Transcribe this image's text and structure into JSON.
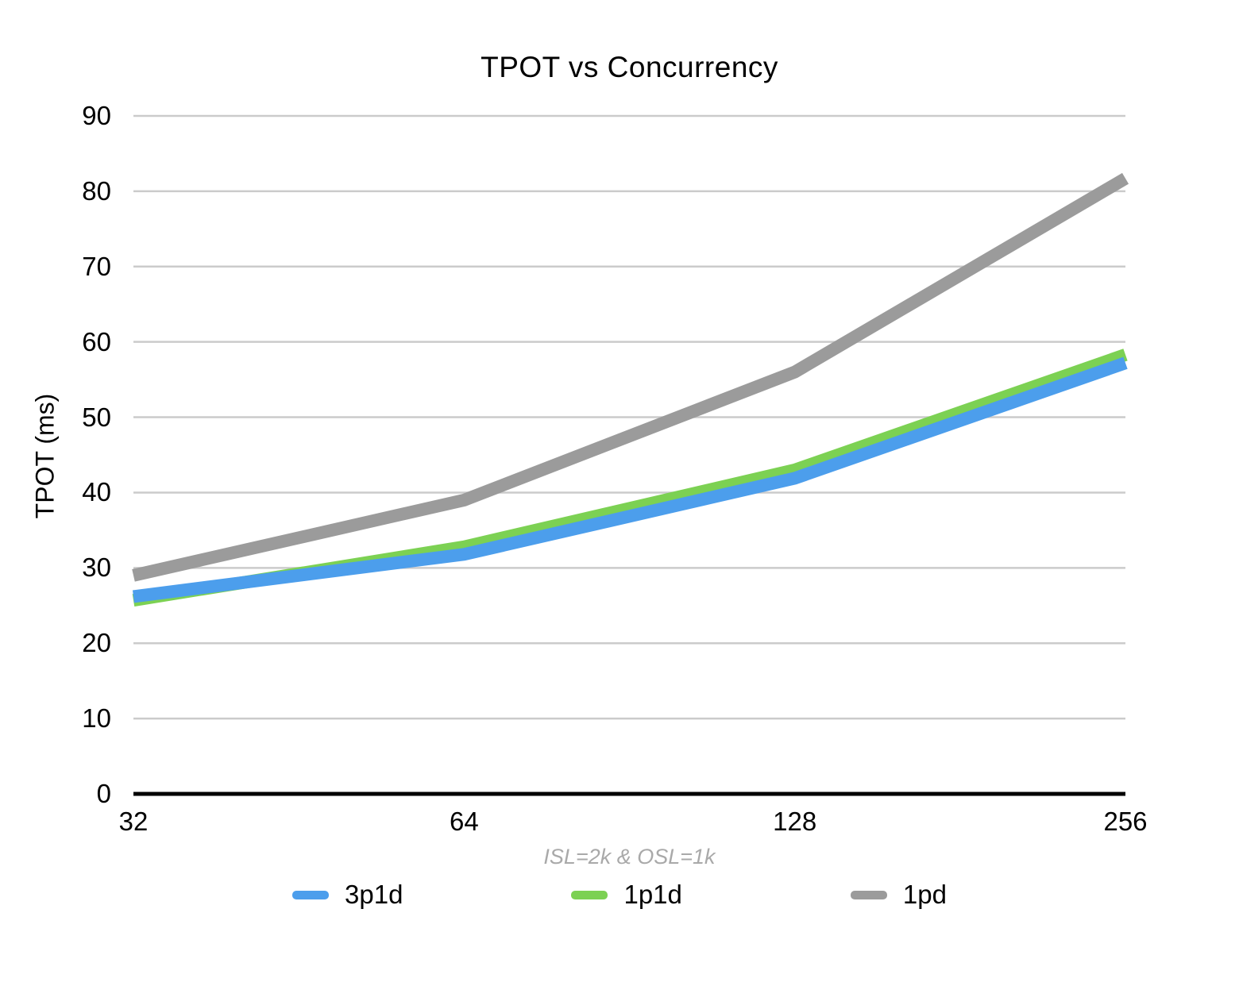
{
  "title": "TPOT vs Concurrency",
  "caption": "ISL=2k & OSL=1k",
  "chart_data": {
    "type": "line",
    "title": "TPOT vs Concurrency",
    "xlabel": "",
    "ylabel": "TPOT (ms)",
    "categories": [
      "32",
      "64",
      "128",
      "256"
    ],
    "series": [
      {
        "name": "3p1d",
        "color": "#4C9EEC",
        "values": [
          26.2,
          31.8,
          41.9,
          57.2
        ]
      },
      {
        "name": "1p1d",
        "color": "#7CD153",
        "values": [
          25.7,
          32.8,
          43.0,
          58.3
        ]
      },
      {
        "name": "1pd",
        "color": "#9B9B9B",
        "values": [
          29.0,
          39.0,
          56.0,
          81.7
        ]
      }
    ],
    "draw_order": [
      "1pd",
      "1p1d",
      "3p1d"
    ],
    "ylim": [
      0,
      90
    ],
    "ytick_interval": 10,
    "yticks": [
      0,
      10,
      20,
      30,
      40,
      50,
      60,
      70,
      80,
      90
    ],
    "grid": "horizontal",
    "legend_position": "bottom",
    "annotation": "ISL=2k & OSL=1k"
  },
  "colors": {
    "gridline": "#CBCBCB",
    "axis": "#000000",
    "title_text": "#000000",
    "tick_text": "#000000",
    "caption_text": "#A9A9A9"
  }
}
